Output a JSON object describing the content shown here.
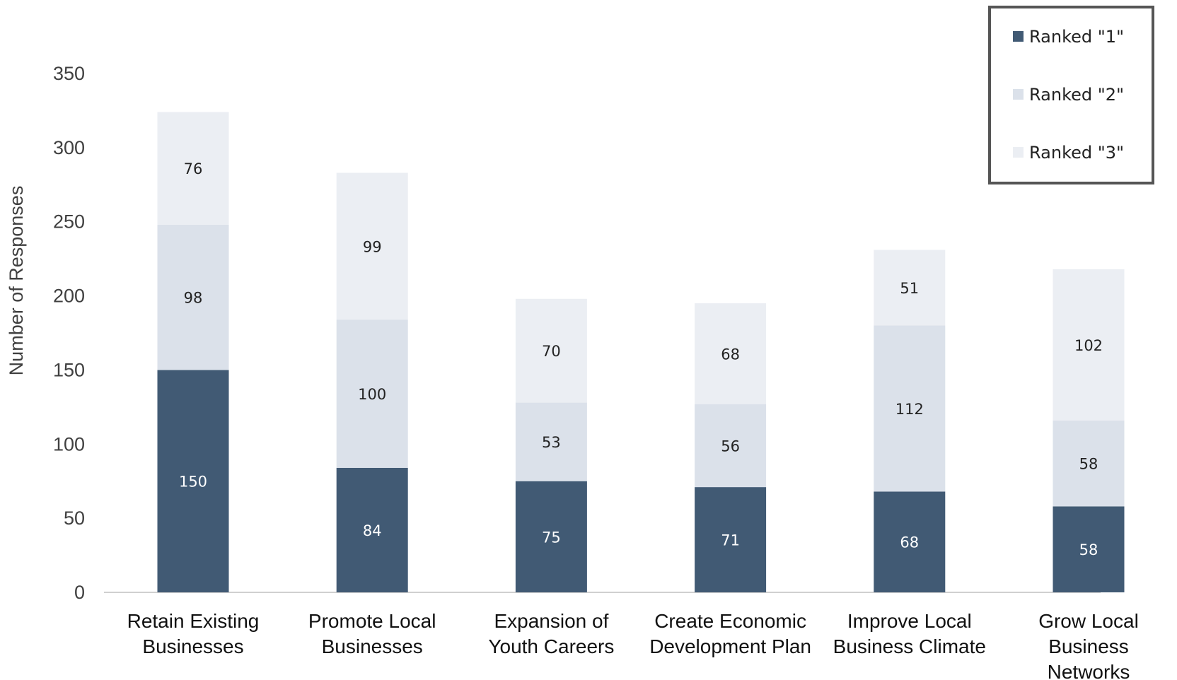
{
  "chart_data": {
    "type": "bar",
    "stacked": true,
    "categories": [
      [
        "Retain Existing",
        "Businesses"
      ],
      [
        "Promote Local",
        "Businesses"
      ],
      [
        "Expansion of",
        "Youth Careers"
      ],
      [
        "Create Economic",
        "Development Plan"
      ],
      [
        "Improve Local",
        "Business Climate"
      ],
      [
        "Grow Local",
        "Business",
        "Networks"
      ]
    ],
    "series": [
      {
        "name": "Ranked \"1\"",
        "color": "#415a74",
        "label_color": "#ffffff",
        "values": [
          150,
          84,
          75,
          71,
          68,
          58
        ]
      },
      {
        "name": "Ranked \"2\"",
        "color": "#dbe1ea",
        "label_color": "#222222",
        "values": [
          98,
          100,
          53,
          56,
          112,
          58
        ]
      },
      {
        "name": "Ranked \"3\"",
        "color": "#ebeef3",
        "label_color": "#222222",
        "values": [
          76,
          99,
          70,
          68,
          51,
          102
        ]
      }
    ],
    "ylabel": "Number of Responses",
    "xlabel": "",
    "ylim": [
      0,
      350
    ],
    "yticks": [
      0,
      50,
      100,
      150,
      200,
      250,
      300,
      350
    ],
    "grid": false,
    "legend_position": "top-right"
  }
}
